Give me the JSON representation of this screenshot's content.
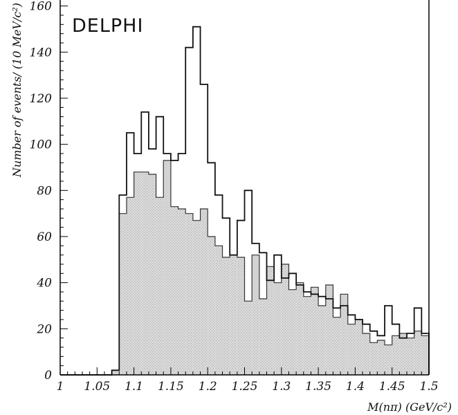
{
  "chart_data": {
    "type": "histogram",
    "experiment_label": "DELPHI",
    "xlabel": "M(nπ) (GeV/c²)",
    "ylabel": "Number of events/ (10 MeV/c²)",
    "xlim": [
      1.0,
      1.5
    ],
    "ylim": [
      0,
      165
    ],
    "bin_width": 0.01,
    "x_ticks": [
      1,
      1.05,
      1.1,
      1.15,
      1.2,
      1.25,
      1.3,
      1.35,
      1.4,
      1.45,
      1.5
    ],
    "x_tick_labels": [
      "1",
      "1.05",
      "1.1",
      "1.15",
      "1.2",
      "1.25",
      "1.3",
      "1.35",
      "1.4",
      "1.45",
      "1.5"
    ],
    "y_ticks": [
      0,
      20,
      40,
      60,
      80,
      100,
      120,
      140,
      160
    ],
    "y_tick_labels": [
      "0",
      "20",
      "40",
      "60",
      "80",
      "100",
      "120",
      "140",
      "160"
    ],
    "series": [
      {
        "style": "outline",
        "bin_edges_start": 1.0,
        "values": [
          0,
          0,
          0,
          0,
          0,
          0,
          0,
          2,
          78,
          105,
          96,
          114,
          98,
          112,
          96,
          93,
          96,
          142,
          151,
          126,
          92,
          78,
          68,
          52,
          67,
          80,
          57,
          53,
          41,
          52,
          42,
          44,
          39,
          36,
          35,
          34,
          33,
          29,
          30,
          26,
          24,
          22,
          19,
          17,
          30,
          22,
          16,
          18,
          29,
          18
        ]
      },
      {
        "style": "filled",
        "color": "#c9c9c9",
        "bin_edges_start": 1.0,
        "values": [
          0,
          0,
          0,
          0,
          0,
          0,
          0,
          2,
          70,
          77,
          88,
          88,
          87,
          77,
          93,
          73,
          72,
          70,
          67,
          72,
          60,
          56,
          51,
          52,
          51,
          32,
          52,
          33,
          47,
          40,
          48,
          37,
          40,
          34,
          38,
          30,
          39,
          25,
          35,
          22,
          24,
          18,
          14,
          15,
          13,
          17,
          18,
          16,
          19,
          17
        ]
      }
    ]
  }
}
